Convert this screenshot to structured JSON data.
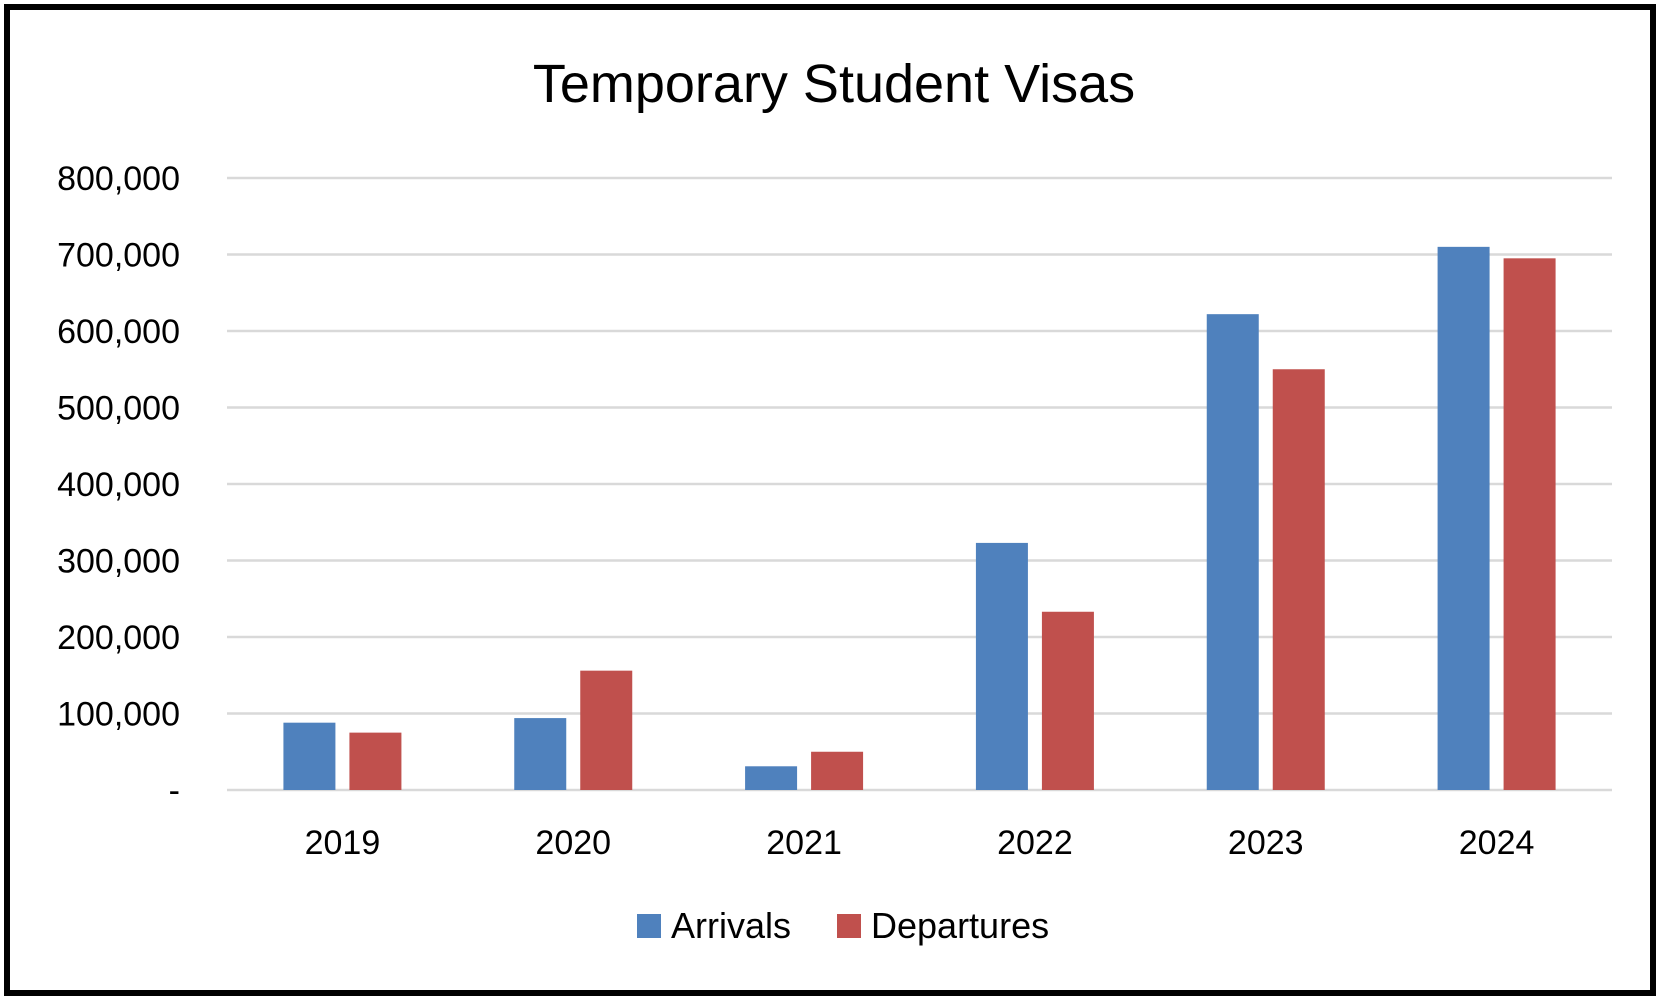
{
  "chart_data": {
    "type": "bar",
    "title": "Temporary Student Visas",
    "xlabel": "",
    "ylabel": "",
    "categories": [
      "2019",
      "2020",
      "2021",
      "2022",
      "2023",
      "2024"
    ],
    "series": [
      {
        "name": "Arrivals",
        "color": "#4f81bd",
        "values": [
          88000,
          94000,
          31000,
          323000,
          622000,
          710000
        ]
      },
      {
        "name": "Departures",
        "color": "#c0504d",
        "values": [
          75000,
          156000,
          50000,
          233000,
          550000,
          695000
        ]
      }
    ],
    "ylim": [
      0,
      800000
    ],
    "yticks": [
      0,
      100000,
      200000,
      300000,
      400000,
      500000,
      600000,
      700000,
      800000
    ],
    "ytick_labels": [
      "-",
      "100,000",
      "200,000",
      "300,000",
      "400,000",
      "500,000",
      "600,000",
      "700,000",
      "800,000"
    ],
    "grid": true,
    "legend_position": "bottom-center"
  }
}
